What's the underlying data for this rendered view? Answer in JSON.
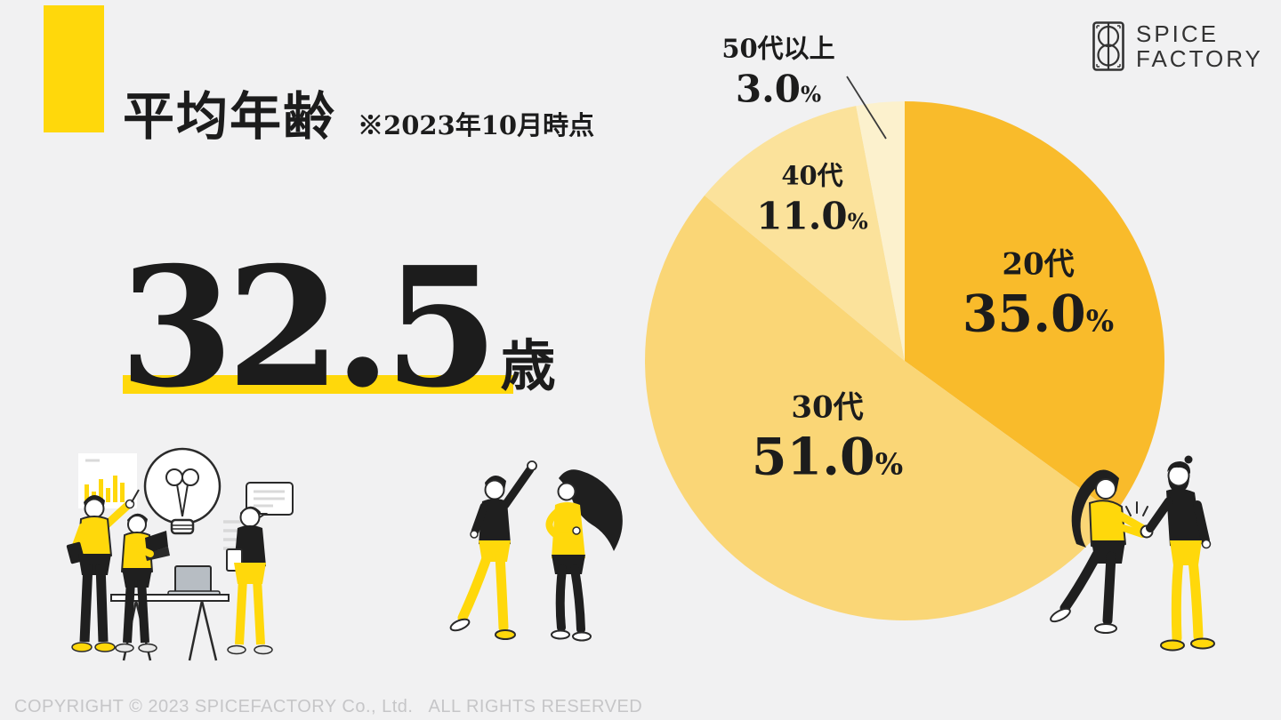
{
  "theme": {
    "accent": "#FFD80B",
    "background": "#F1F1F2",
    "text": "#1C1C1C",
    "copyright_gray": "#C6C6C8",
    "logo_color": "#333333"
  },
  "header": {
    "title": "平均年齢",
    "note": "※2023年10月時点"
  },
  "stat": {
    "value": "32.5",
    "unit": "歳"
  },
  "logo": {
    "line1": "SPICE",
    "line2": "FACTORY"
  },
  "footer": {
    "copyright": "COPYRIGHT © 2023 SPICEFACTORY Co., Ltd.   ALL RIGHTS RESERVED"
  },
  "chart_data": {
    "type": "pie",
    "title": "",
    "categories": [
      "20代",
      "30代",
      "40代",
      "50代以上"
    ],
    "values": [
      35.0,
      51.0,
      11.0,
      3.0
    ],
    "unit": "%",
    "colors": [
      "#F9BB2B",
      "#FAD676",
      "#FBE29B",
      "#FCF1CD"
    ],
    "start_angle_deg": 0,
    "direction": "clockwise",
    "legend": "none",
    "labels_on_slices": true
  }
}
